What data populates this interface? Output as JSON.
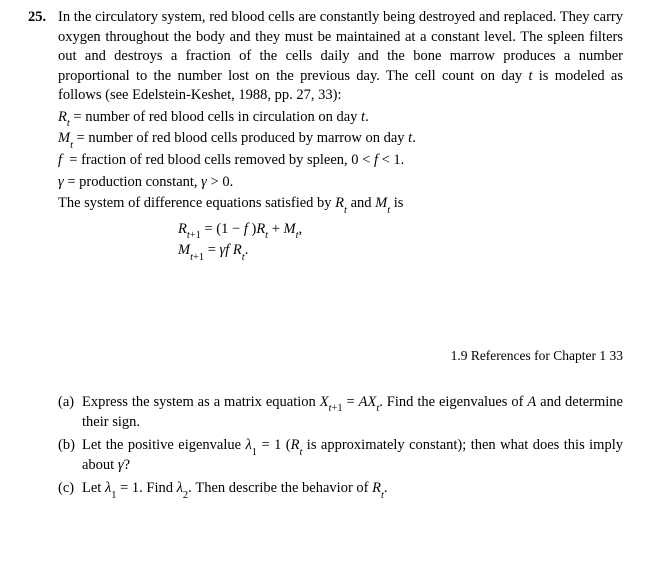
{
  "problem": {
    "number": "25.",
    "intro": "In the circulatory system, red blood cells are constantly being destroyed and replaced. They carry oxygen throughout the body and they must be maintained at a constant level. The spleen filters out and destroys a fraction of the cells daily and the bone marrow produces a number proportional to the number lost on the previous day. The cell count on day t is modeled as follows (see Edelstein-Keshet, 1988, pp. 27, 33):",
    "defs": {
      "r": "Rₜ = number of red blood cells in circulation on day t.",
      "m": "Mₜ = number of red blood cells produced by marrow on day t.",
      "f": "f  = fraction of red blood cells removed by spleen, 0 < f < 1.",
      "g": "γ = production constant, γ > 0."
    },
    "lead": "The system of difference equations satisfied by Rₜ and Mₜ is",
    "eq1": "Rₜ₊₁ = (1 − f )Rₜ + Mₜ,",
    "eq2": "Mₜ₊₁ = γf Rₜ."
  },
  "runhead": "1.9  References for Chapter 1    33",
  "parts": {
    "a": {
      "label": "(a)",
      "text": "Express the system as a matrix equation Xₜ₊₁ = AXₜ. Find the eigenvalues of A and determine their sign."
    },
    "b": {
      "label": "(b)",
      "text": "Let the positive eigenvalue λ₁ = 1 (Rₜ is approximately constant); then what does this imply about γ?"
    },
    "c": {
      "label": "(c)",
      "text": "Let λ₁ = 1. Find λ₂. Then describe the behavior of Rₜ."
    }
  }
}
